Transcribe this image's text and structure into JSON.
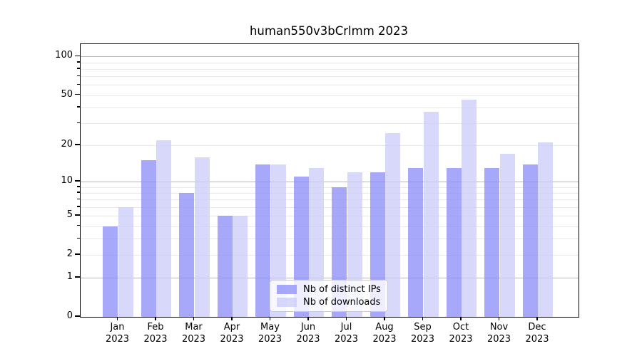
{
  "chart_data": {
    "type": "bar",
    "title": "human550v3bCrlmm 2023",
    "year_label": "2023",
    "categories": [
      "Jan",
      "Feb",
      "Mar",
      "Apr",
      "May",
      "Jun",
      "Jul",
      "Aug",
      "Sep",
      "Oct",
      "Nov",
      "Dec"
    ],
    "series": [
      {
        "name": "Nb of distinct IPs",
        "color": "#8b8bf8",
        "opacity": 0.75,
        "values": [
          4,
          15,
          8,
          5,
          14,
          11,
          9,
          12,
          13,
          13,
          13,
          14
        ]
      },
      {
        "name": "Nb of downloads",
        "color": "#cbcbf8",
        "opacity": 0.75,
        "values": [
          6,
          22,
          16,
          5,
          14,
          13,
          12,
          25,
          37,
          46,
          17,
          21
        ]
      }
    ],
    "xlabel": "",
    "ylabel": "",
    "yscale": "log1p",
    "yticks": [
      0,
      1,
      2,
      5,
      10,
      20,
      50,
      100
    ],
    "ylim": [
      0,
      125
    ],
    "grid": {
      "on": true,
      "major": [
        1,
        10,
        100
      ],
      "minor": [
        2,
        3,
        4,
        5,
        6,
        7,
        8,
        9,
        20,
        30,
        40,
        50,
        60,
        70,
        80,
        90
      ]
    },
    "legend_position": "lower-center",
    "colors": {
      "grid_major": "#b6b6b6",
      "grid_minor": "#e9e9e9",
      "spine": "#000000",
      "text": "#000000",
      "background": "#ffffff"
    }
  }
}
